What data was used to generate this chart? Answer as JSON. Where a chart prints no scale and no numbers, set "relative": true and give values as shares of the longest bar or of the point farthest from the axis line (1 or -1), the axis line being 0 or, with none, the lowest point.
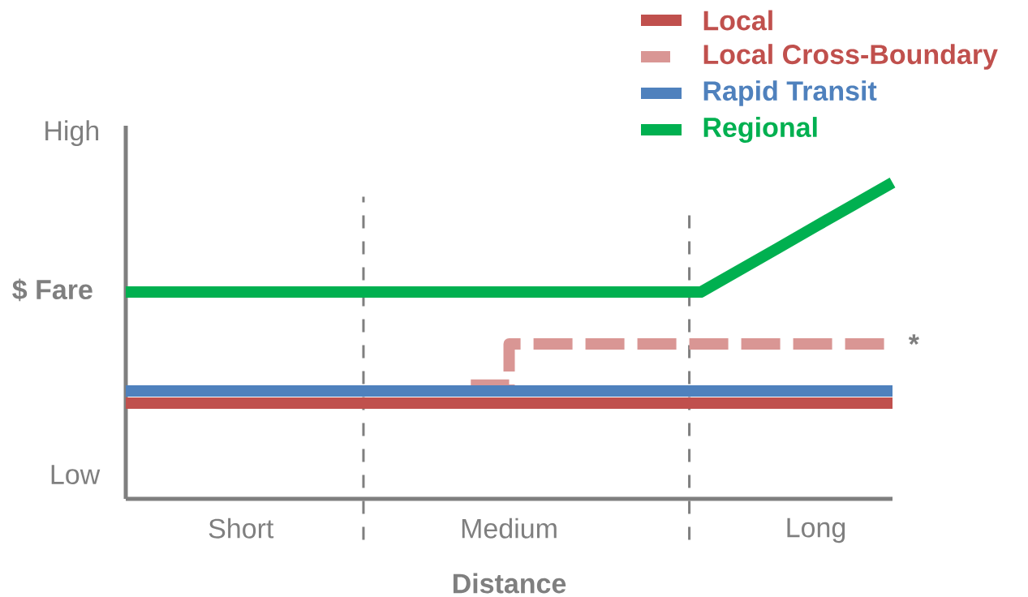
{
  "chart_data": {
    "type": "line",
    "relative": true,
    "xlabel": "Distance",
    "ylabel": "$ Fare",
    "categories": [
      null,
      null,
      null,
      "Short",
      null,
      null,
      null,
      null,
      null,
      null,
      "Medium",
      null,
      null,
      null,
      null,
      null,
      null,
      null,
      "Long",
      null,
      null
    ],
    "series": [
      {
        "name": "Local",
        "color": "#c0504d",
        "line_style": "solid",
        "values": [
          0.303,
          0.303,
          0.303,
          0.303,
          0.303,
          0.303,
          0.303,
          0.303,
          0.303,
          0.303,
          0.303,
          0.303,
          0.303,
          0.303,
          0.303,
          0.303,
          0.303,
          0.303,
          0.303,
          0.303,
          0.303
        ]
      },
      {
        "name": "Local Cross-Boundary",
        "type": "step",
        "color": "#d99694",
        "line_style": "dashed",
        "values": [
          null,
          null,
          null,
          null,
          null,
          null,
          null,
          null,
          null,
          0.36,
          0.49,
          0.49,
          0.49,
          0.49,
          0.49,
          0.49,
          0.49,
          0.49,
          0.49,
          0.49,
          0.49
        ]
      },
      {
        "name": "Rapid Transit",
        "color": "#4f81bd",
        "line_style": "solid",
        "values": [
          0.341,
          0.341,
          0.341,
          0.341,
          0.341,
          0.341,
          0.341,
          0.341,
          0.341,
          0.341,
          0.341,
          0.341,
          0.341,
          0.341,
          0.341,
          0.341,
          0.341,
          0.341,
          0.341,
          0.341,
          0.341
        ]
      },
      {
        "name": "Regional",
        "color": "#00b050",
        "line_style": "solid",
        "values": [
          0.654,
          0.654,
          0.654,
          0.654,
          0.654,
          0.654,
          0.654,
          0.654,
          0.654,
          0.654,
          0.654,
          0.654,
          0.654,
          0.654,
          0.654,
          0.654,
          0.723,
          0.792,
          0.862,
          0.931,
          1.0
        ]
      }
    ],
    "annotations": [
      "High",
      "Low",
      "*"
    ],
    "legend": "top right",
    "marker": "none",
    "grid": "x"
  }
}
